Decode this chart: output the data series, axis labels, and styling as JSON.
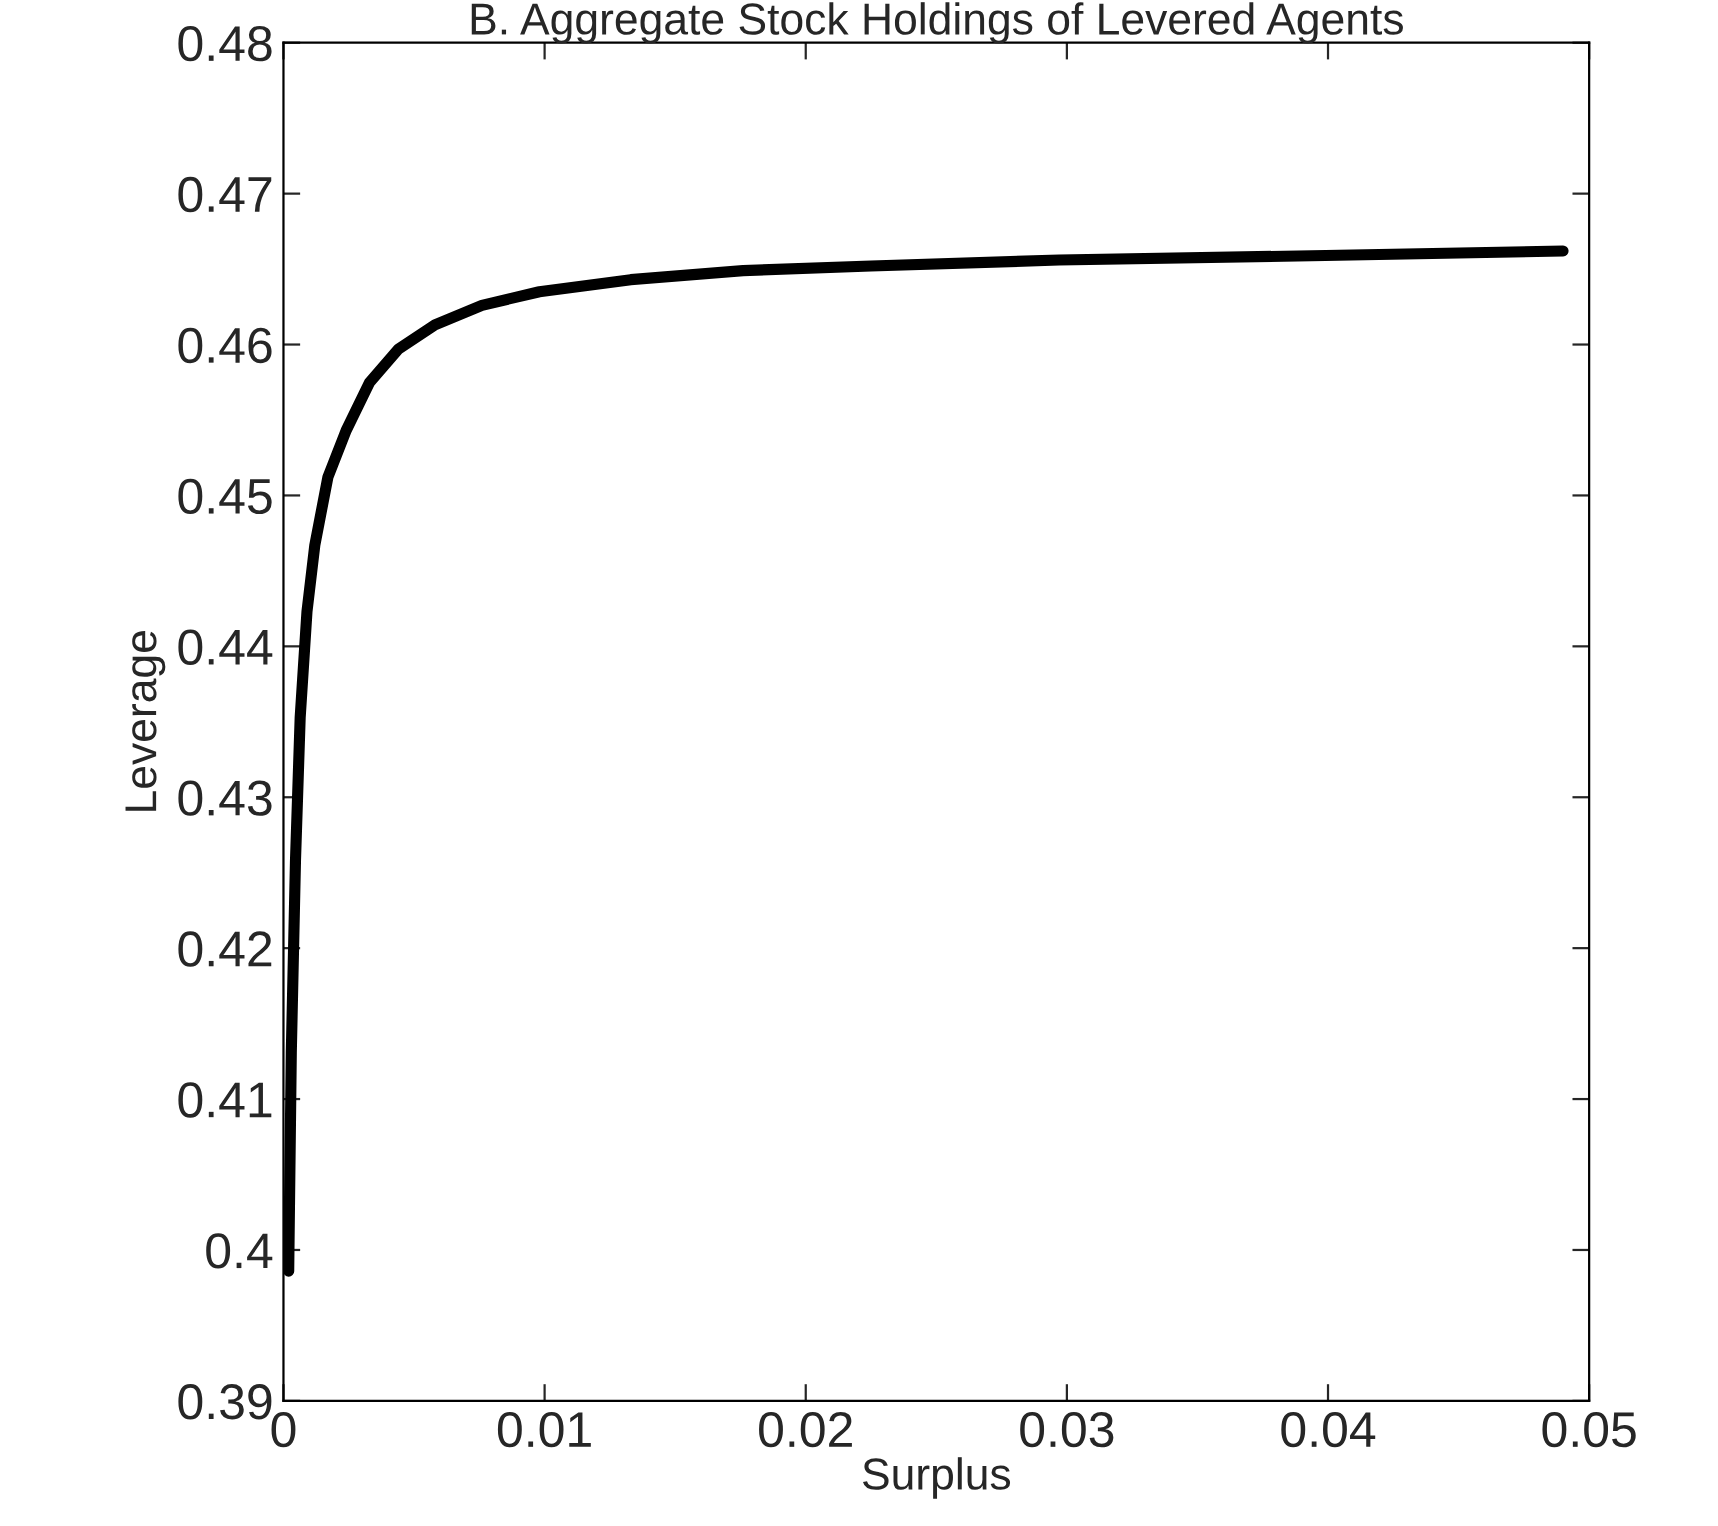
{
  "chart_data": {
    "type": "line",
    "title": "B. Aggregate Stock Holdings of Levered Agents",
    "xlabel": "Surplus",
    "ylabel": "Leverage",
    "series": [
      {
        "color": "#000000",
        "x": [
          0.0002,
          0.0003,
          0.00046,
          0.00064,
          0.0009,
          0.0012,
          0.0017,
          0.0024,
          0.0033,
          0.0044,
          0.0058,
          0.0076,
          0.0098,
          0.0133,
          0.0176,
          0.0225,
          0.0297,
          0.0399,
          0.049
        ],
        "values": [
          0.3986,
          0.4131,
          0.4258,
          0.4353,
          0.4423,
          0.4467,
          0.4512,
          0.4543,
          0.4575,
          0.4597,
          0.4613,
          0.4626,
          0.4635,
          0.4643,
          0.4649,
          0.4652,
          0.4656,
          0.4659,
          0.4662
        ]
      }
    ],
    "xlim": [
      0,
      0.05
    ],
    "xticks": [
      0,
      0.01,
      0.02,
      0.03,
      0.04,
      0.05
    ],
    "ylim": [
      0.39,
      0.48
    ],
    "yticks": [
      0.39,
      0.4,
      0.41,
      0.42,
      0.43,
      0.44,
      0.45,
      0.46,
      0.47,
      0.48
    ],
    "grid": false,
    "line_style": "solid",
    "marker": "none"
  }
}
